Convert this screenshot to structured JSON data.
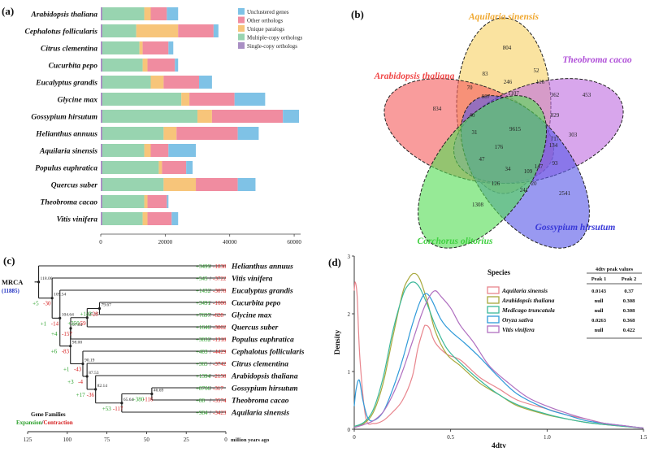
{
  "panel_labels": [
    "(a)",
    "(b)",
    "(c)",
    "(d)"
  ],
  "chart_data": [
    {
      "panel": "(a)",
      "type": "bar",
      "orientation": "horizontal",
      "stacked": true,
      "categories": [
        "Arabidopsis thaliana",
        "Cephalotus follicularis",
        "Citrus clementina",
        "Cucurbita pepo",
        "Eucalyptus grandis",
        "Glycine max",
        "Gossypium hirsutum",
        "Helianthus annuus",
        "Aquilaria sinensis",
        "Populus euphratica",
        "Quercus suber",
        "Theobroma cacao",
        "Vitis vinifera"
      ],
      "highlight_category": "Aquilaria sinensis",
      "series": [
        {
          "name": "Single-copy orthologs",
          "color": "#a98fc4",
          "values": [
            500,
            500,
            500,
            500,
            500,
            500,
            500,
            500,
            500,
            500,
            500,
            500,
            500
          ]
        },
        {
          "name": "Multiple-copy orthologs",
          "color": "#98d4b0",
          "values": [
            13000,
            10500,
            11500,
            12500,
            15000,
            24500,
            29500,
            19000,
            13000,
            17500,
            19000,
            13000,
            12500
          ]
        },
        {
          "name": "Unique paralogs",
          "color": "#f7c57a",
          "values": [
            2000,
            13000,
            1000,
            1500,
            4000,
            2500,
            4500,
            4000,
            2000,
            1000,
            10000,
            1000,
            1500
          ]
        },
        {
          "name": "Other orthologs",
          "color": "#f08ca0",
          "values": [
            5000,
            11000,
            8000,
            8500,
            11000,
            14000,
            22000,
            19000,
            5500,
            7500,
            13000,
            6000,
            7500
          ]
        },
        {
          "name": "Unclustered genes",
          "color": "#7fc2e6",
          "values": [
            3500,
            1500,
            1500,
            1000,
            4000,
            9500,
            5000,
            6500,
            8500,
            2000,
            5500,
            500,
            2000
          ]
        }
      ],
      "xticks": [
        "0",
        "20000",
        "40000",
        "60000"
      ],
      "xlim": [
        0,
        62000
      ],
      "legend_position": "top-right"
    },
    {
      "panel": "(d)",
      "type": "line",
      "xlabel": "4dtv",
      "ylabel": "Density",
      "xlim": [
        0,
        1.5
      ],
      "ylim": [
        0,
        3
      ],
      "xticks": [
        "0",
        "0.5",
        "1.0",
        "1.5"
      ],
      "yticks": [
        "0",
        "1",
        "2",
        "3"
      ],
      "legend_title": "Species",
      "table_title": "4dtv peak values",
      "table_headers": [
        "Peak 1",
        "Peak 2"
      ],
      "series": [
        {
          "name": "Aquilaria sinensis",
          "color": "#e8858d",
          "peak1": "0.0143",
          "peak2": "0.37",
          "x": [
            0,
            0.005,
            0.015,
            0.03,
            0.06,
            0.1,
            0.15,
            0.2,
            0.25,
            0.3,
            0.33,
            0.36,
            0.37,
            0.39,
            0.42,
            0.48,
            0.55,
            0.65,
            0.75,
            0.85,
            1.0,
            1.1,
            1.2,
            1.3,
            1.4,
            1.5
          ],
          "y": [
            2.4,
            2.55,
            2.3,
            1.2,
            0.2,
            0.1,
            0.15,
            0.3,
            0.5,
            0.9,
            1.4,
            1.75,
            1.8,
            1.75,
            1.5,
            1.3,
            1.2,
            0.9,
            0.7,
            0.5,
            0.35,
            0.25,
            0.18,
            0.1,
            0.06,
            0.02
          ]
        },
        {
          "name": "Arabidopsis thaliana",
          "color": "#a8a83c",
          "peak1": "null",
          "peak2": "0.308",
          "x": [
            0,
            0.05,
            0.1,
            0.15,
            0.2,
            0.25,
            0.28,
            0.31,
            0.34,
            0.38,
            0.42,
            0.48,
            0.55,
            0.65,
            0.75,
            0.85,
            1.0,
            1.1,
            1.2,
            1.3,
            1.4,
            1.5
          ],
          "y": [
            0.05,
            0.1,
            0.3,
            0.8,
            1.6,
            2.35,
            2.6,
            2.7,
            2.6,
            2.2,
            1.7,
            1.3,
            1.1,
            0.8,
            0.6,
            0.4,
            0.25,
            0.18,
            0.12,
            0.08,
            0.05,
            0.02
          ]
        },
        {
          "name": "Medicago truncatula",
          "color": "#3cb89a",
          "peak1": "null",
          "peak2": "0.308",
          "x": [
            0,
            0.05,
            0.1,
            0.15,
            0.2,
            0.25,
            0.28,
            0.31,
            0.34,
            0.38,
            0.42,
            0.48,
            0.55,
            0.65,
            0.75,
            0.85,
            1.0,
            1.1,
            1.2,
            1.3,
            1.4,
            1.5
          ],
          "y": [
            0.05,
            0.12,
            0.35,
            0.9,
            1.7,
            2.3,
            2.5,
            2.55,
            2.45,
            2.15,
            1.8,
            1.4,
            1.15,
            0.85,
            0.6,
            0.42,
            0.26,
            0.18,
            0.12,
            0.08,
            0.05,
            0.02
          ]
        },
        {
          "name": "Oryza sativa",
          "color": "#2f9ad9",
          "peak1": "0.0263",
          "peak2": "0.368",
          "x": [
            0,
            0.01,
            0.026,
            0.045,
            0.07,
            0.1,
            0.15,
            0.2,
            0.25,
            0.3,
            0.34,
            0.37,
            0.4,
            0.45,
            0.5,
            0.57,
            0.65,
            0.75,
            0.85,
            1.0,
            1.1,
            1.2,
            1.3,
            1.4,
            1.5
          ],
          "y": [
            0.4,
            0.7,
            0.85,
            0.5,
            0.2,
            0.15,
            0.3,
            0.7,
            1.2,
            1.8,
            2.2,
            2.35,
            2.25,
            1.9,
            1.7,
            1.5,
            1.25,
            0.9,
            0.6,
            0.35,
            0.25,
            0.15,
            0.1,
            0.06,
            0.02
          ]
        },
        {
          "name": "Vitis vinifera",
          "color": "#b070c0",
          "peak1": "null",
          "peak2": "0.422",
          "x": [
            0,
            0.05,
            0.1,
            0.15,
            0.2,
            0.25,
            0.3,
            0.35,
            0.39,
            0.42,
            0.45,
            0.5,
            0.55,
            0.62,
            0.7,
            0.8,
            0.9,
            1.0,
            1.1,
            1.2,
            1.3,
            1.4,
            1.5
          ],
          "y": [
            0.03,
            0.08,
            0.15,
            0.3,
            0.6,
            1.0,
            1.5,
            2.0,
            2.3,
            2.4,
            2.3,
            2.1,
            1.8,
            1.5,
            1.1,
            0.8,
            0.55,
            0.4,
            0.28,
            0.18,
            0.1,
            0.06,
            0.02
          ]
        }
      ]
    }
  ],
  "venn": {
    "panel": "(b)",
    "sets": [
      {
        "name": "Aquilaria sinensis",
        "color": "#f0a830"
      },
      {
        "name": "Arabidopsis thaliana",
        "color": "#f04848"
      },
      {
        "name": "Theobroma cacao",
        "color": "#b050d8"
      },
      {
        "name": "Gossypium hirsutum",
        "color": "#3838d8"
      },
      {
        "name": "Corchorus olitorius",
        "color": "#40d040"
      }
    ],
    "counts": [
      "804",
      "834",
      "453",
      "2541",
      "1308",
      "9615",
      "83",
      "52",
      "70",
      "246",
      "116",
      "987",
      "1107",
      "362",
      "40",
      "829",
      "31",
      "717",
      "303",
      "176",
      "134",
      "47",
      "34",
      "109",
      "147",
      "93",
      "126",
      "241",
      "20"
    ]
  },
  "tree": {
    "panel": "(c)",
    "mrca_label": "MRCA",
    "mrca_count": "(11885)",
    "root_age": "118.06",
    "x_axis_label": "million years ago",
    "xticks": [
      "125",
      "100",
      "75",
      "50",
      "25",
      "0"
    ],
    "legend_line1": "Gene Families",
    "legend_expansion": "Expansion",
    "legend_sep": "/",
    "legend_contraction": "Contraction",
    "leaves": [
      {
        "name": "Helianthus annuus",
        "exp": "+3499",
        "con": "-1838"
      },
      {
        "name": "Vitis vinifera",
        "exp": "+545",
        "con": "-3722"
      },
      {
        "name": "Eucalyptus grandis",
        "exp": "+1432",
        "con": "-3078"
      },
      {
        "name": "Cucurbita pepo",
        "exp": "+3491",
        "con": "-1606"
      },
      {
        "name": "Glycine max",
        "exp": "+7697",
        "con": "-628"
      },
      {
        "name": "Quercus suber",
        "exp": "+1646",
        "con": "-3802"
      },
      {
        "name": "Populus euphratica",
        "exp": "+3832",
        "con": "-1318"
      },
      {
        "name": "Cephalotus follicularis",
        "exp": "+403",
        "con": "-4429"
      },
      {
        "name": "Citrus clementina",
        "exp": "+365",
        "con": "-3742"
      },
      {
        "name": "Arabidopsis thaliana",
        "exp": "+1394",
        "con": "-2150"
      },
      {
        "name": "Gossypium hirsutum",
        "exp": "+8766",
        "con": "-317"
      },
      {
        "name": "Theobroma cacao",
        "exp": "+88",
        "con": "-3574"
      },
      {
        "name": "Aquilaria sinensis",
        "exp": "+984",
        "con": "-3423",
        "highlight": true
      }
    ],
    "nodes": [
      {
        "age": "109.54",
        "exp": "+5",
        "con": "-30"
      },
      {
        "age": "104.64",
        "exp": "+1",
        "con": "-14"
      },
      {
        "age": "98.00",
        "exp": "+6",
        "con": "-83"
      },
      {
        "age": "97.84",
        "exp": "+4",
        "con": "-157"
      },
      {
        "age": "90.19",
        "exp": "+1",
        "con": "-43"
      },
      {
        "age": "87.53",
        "exp": "+3",
        "con": "-4"
      },
      {
        "age": "82.14",
        "exp": "+17",
        "con": "-36"
      },
      {
        "age": "65.64",
        "exp": "+53",
        "con": "-117"
      },
      {
        "age": "46.69",
        "exp": "+380",
        "con": "-116"
      },
      {
        "age": "87.45",
        "exp": "+350",
        "con": "-59"
      },
      {
        "age": "79.67",
        "exp": "+142",
        "con": "-28"
      }
    ]
  }
}
